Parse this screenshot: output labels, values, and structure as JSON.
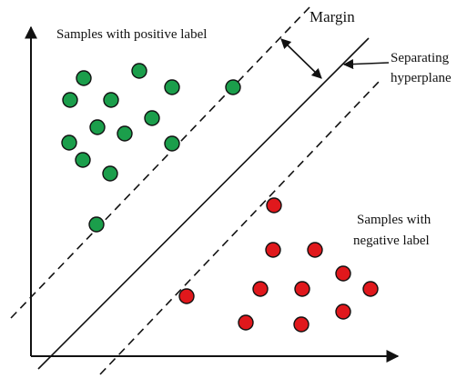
{
  "labels": {
    "positive": "Samples with positive label",
    "negative_line1": "Samples with",
    "negative_line2": "negative label",
    "margin": "Margin",
    "separating_line1": "Separating",
    "separating_line2": "hyperplane"
  },
  "colors": {
    "positive": "#1b9e4b",
    "negative": "#e0181c",
    "outline": "#111111"
  },
  "icons": {
    "axis_arrow": "arrowhead-icon",
    "margin_arrow": "double-arrow-icon",
    "pointer_arrow": "arrow-left-icon"
  }
}
